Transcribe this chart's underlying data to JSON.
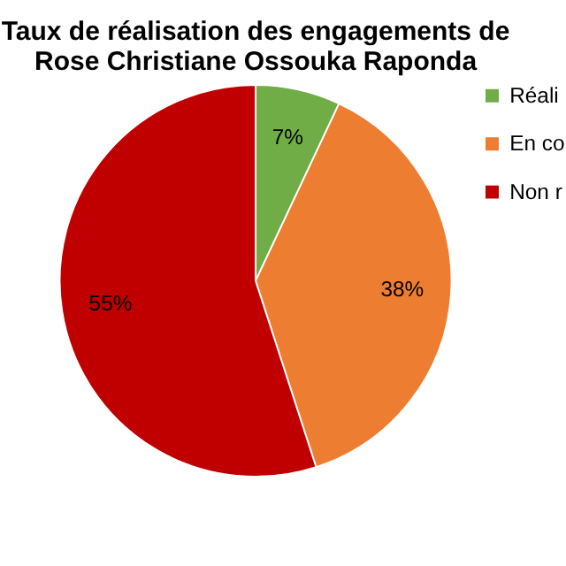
{
  "chart_data": {
    "type": "pie",
    "title": [
      "Taux de réalisation des engagements de",
      "Rose Christiane Ossouka Raponda"
    ],
    "categories": [
      "Réali",
      "En co",
      "Non r"
    ],
    "values": [
      7,
      38,
      55
    ],
    "colors": [
      "#70ad47",
      "#ed7d31",
      "#c00000"
    ],
    "value_labels": [
      "7%",
      "38%",
      "55%"
    ],
    "legend": "right"
  }
}
